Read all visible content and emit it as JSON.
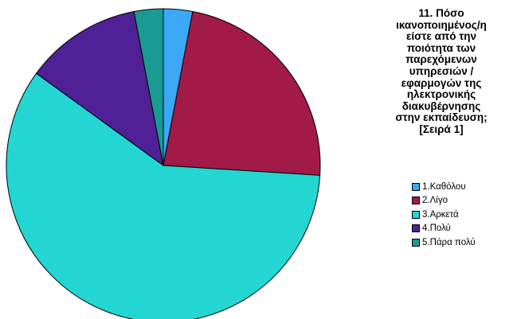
{
  "chart_data": {
    "type": "pie",
    "title_lines": [
      "11. Πόσο",
      "ικανοποιημένος/η",
      "είστε από την",
      "ποιότητα των",
      "παρεχόμενων",
      "υπηρεσιών /",
      "εφαρμογών της",
      "ηλεκτρονικής",
      "διακυβέρνησης",
      "στην εκπαίδευση;",
      "[Σειρά 1]"
    ],
    "start_angle_deg": 0,
    "slices": [
      {
        "label": "1.Καθόλου",
        "value": 3,
        "color": "#3aa8f5"
      },
      {
        "label": "2.Λίγο",
        "value": 23,
        "color": "#a11a48"
      },
      {
        "label": "3.Αρκετά",
        "value": 59,
        "color": "#24d6d2"
      },
      {
        "label": "4.Πολύ",
        "value": 12,
        "color": "#4f2096"
      },
      {
        "label": "5.Πάρα πολύ",
        "value": 3,
        "color": "#1a9a92"
      }
    ],
    "legend_position": "right"
  }
}
